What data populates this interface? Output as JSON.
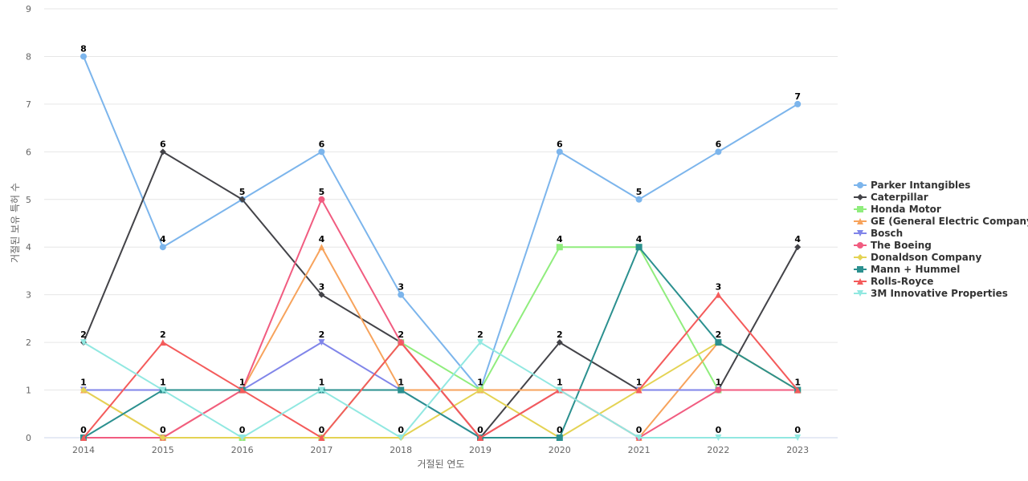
{
  "chart_data": {
    "type": "line",
    "title": "",
    "xlabel": "거절된 연도",
    "ylabel": "거절된 보유 특허 수",
    "x": [
      "2014",
      "2015",
      "2016",
      "2017",
      "2018",
      "2019",
      "2020",
      "2021",
      "2022",
      "2023"
    ],
    "ylim": [
      0,
      9
    ],
    "yticks": [
      0,
      1,
      2,
      3,
      4,
      5,
      6,
      7,
      8,
      9
    ],
    "grid": "horizontal",
    "legend_position": "right",
    "series": [
      {
        "name": "Parker Intangibles",
        "color": "#7cb5ec",
        "marker": "circle",
        "values": [
          8,
          4,
          5,
          6,
          3,
          1,
          6,
          5,
          6,
          7
        ]
      },
      {
        "name": "Caterpillar",
        "color": "#434348",
        "marker": "diamond",
        "values": [
          2,
          6,
          5,
          3,
          2,
          0,
          2,
          1,
          1,
          4
        ]
      },
      {
        "name": "Honda Motor",
        "color": "#90ed7d",
        "marker": "square",
        "values": [
          0,
          0,
          0,
          0,
          2,
          1,
          4,
          4,
          1,
          1
        ]
      },
      {
        "name": "GE (General Electric Company)",
        "color": "#f7a35c",
        "marker": "triangle",
        "values": [
          1,
          0,
          1,
          4,
          1,
          1,
          1,
          0,
          2,
          1
        ]
      },
      {
        "name": "Bosch",
        "color": "#8085e9",
        "marker": "triangle-down",
        "values": [
          1,
          1,
          1,
          2,
          1,
          0,
          1,
          1,
          1,
          1
        ]
      },
      {
        "name": "The Boeing",
        "color": "#f15c80",
        "marker": "circle",
        "values": [
          0,
          0,
          1,
          5,
          2,
          0,
          1,
          0,
          1,
          1
        ]
      },
      {
        "name": "Donaldson Company",
        "color": "#e4d354",
        "marker": "diamond",
        "values": [
          1,
          0,
          0,
          0,
          0,
          1,
          0,
          1,
          2,
          1
        ]
      },
      {
        "name": "Mann + Hummel",
        "color": "#2b908f",
        "marker": "square",
        "values": [
          0,
          1,
          1,
          1,
          1,
          0,
          0,
          4,
          2,
          1
        ]
      },
      {
        "name": "Rolls-Royce",
        "color": "#f45b5b",
        "marker": "triangle",
        "values": [
          0,
          2,
          1,
          0,
          2,
          0,
          1,
          1,
          3,
          1
        ]
      },
      {
        "name": "3M Innovative Properties",
        "color": "#91e8e1",
        "marker": "triangle-down",
        "values": [
          2,
          1,
          0,
          1,
          0,
          2,
          1,
          0,
          0,
          0
        ]
      }
    ],
    "data_labels": [
      {
        "category": "2014",
        "series": "Parker Intangibles",
        "text": "8"
      },
      {
        "category": "2014",
        "series": "Caterpillar",
        "text": "2"
      },
      {
        "category": "2014",
        "series": "GE (General Electric Company)",
        "text": "1"
      },
      {
        "category": "2014",
        "series": "Mann + Hummel",
        "text": "0"
      },
      {
        "category": "2015",
        "series": "Caterpillar",
        "text": "6"
      },
      {
        "category": "2015",
        "series": "Parker Intangibles",
        "text": "4"
      },
      {
        "category": "2015",
        "series": "Rolls-Royce",
        "text": "2"
      },
      {
        "category": "2015",
        "series": "Mann + Hummel",
        "text": "1"
      },
      {
        "category": "2015",
        "series": "GE (General Electric Company)",
        "text": "0"
      },
      {
        "category": "2016",
        "series": "Caterpillar",
        "text": "5"
      },
      {
        "category": "2016",
        "series": "Rolls-Royce",
        "text": "1"
      },
      {
        "category": "2016",
        "series": "3M Innovative Properties",
        "text": "0"
      },
      {
        "category": "2017",
        "series": "Parker Intangibles",
        "text": "6"
      },
      {
        "category": "2017",
        "series": "The Boeing",
        "text": "5"
      },
      {
        "category": "2017",
        "series": "GE (General Electric Company)",
        "text": "4"
      },
      {
        "category": "2017",
        "series": "Caterpillar",
        "text": "3"
      },
      {
        "category": "2017",
        "series": "Bosch",
        "text": "2"
      },
      {
        "category": "2017",
        "series": "3M Innovative Properties",
        "text": "1"
      },
      {
        "category": "2017",
        "series": "Rolls-Royce",
        "text": "0"
      },
      {
        "category": "2018",
        "series": "Parker Intangibles",
        "text": "3"
      },
      {
        "category": "2018",
        "series": "The Boeing",
        "text": "2"
      },
      {
        "category": "2018",
        "series": "Mann + Hummel",
        "text": "1"
      },
      {
        "category": "2018",
        "series": "3M Innovative Properties",
        "text": "0"
      },
      {
        "category": "2019",
        "series": "3M Innovative Properties",
        "text": "2"
      },
      {
        "category": "2019",
        "series": "Donaldson Company",
        "text": "1"
      },
      {
        "category": "2019",
        "series": "Rolls-Royce",
        "text": "0"
      },
      {
        "category": "2020",
        "series": "Parker Intangibles",
        "text": "6"
      },
      {
        "category": "2020",
        "series": "Honda Motor",
        "text": "4"
      },
      {
        "category": "2020",
        "series": "Caterpillar",
        "text": "2"
      },
      {
        "category": "2020",
        "series": "3M Innovative Properties",
        "text": "1"
      },
      {
        "category": "2020",
        "series": "Mann + Hummel",
        "text": "0"
      },
      {
        "category": "2021",
        "series": "Parker Intangibles",
        "text": "5"
      },
      {
        "category": "2021",
        "series": "Mann + Hummel",
        "text": "4"
      },
      {
        "category": "2021",
        "series": "Rolls-Royce",
        "text": "1"
      },
      {
        "category": "2021",
        "series": "The Boeing",
        "text": "0"
      },
      {
        "category": "2022",
        "series": "Parker Intangibles",
        "text": "6"
      },
      {
        "category": "2022",
        "series": "Rolls-Royce",
        "text": "3"
      },
      {
        "category": "2022",
        "series": "Mann + Hummel",
        "text": "2"
      },
      {
        "category": "2022",
        "series": "Honda Motor",
        "text": "1"
      },
      {
        "category": "2022",
        "series": "3M Innovative Properties",
        "text": "0"
      },
      {
        "category": "2023",
        "series": "Parker Intangibles",
        "text": "7"
      },
      {
        "category": "2023",
        "series": "Caterpillar",
        "text": "4"
      },
      {
        "category": "2023",
        "series": "Mann + Hummel",
        "text": "1"
      },
      {
        "category": "2023",
        "series": "3M Innovative Properties",
        "text": "0"
      }
    ]
  }
}
